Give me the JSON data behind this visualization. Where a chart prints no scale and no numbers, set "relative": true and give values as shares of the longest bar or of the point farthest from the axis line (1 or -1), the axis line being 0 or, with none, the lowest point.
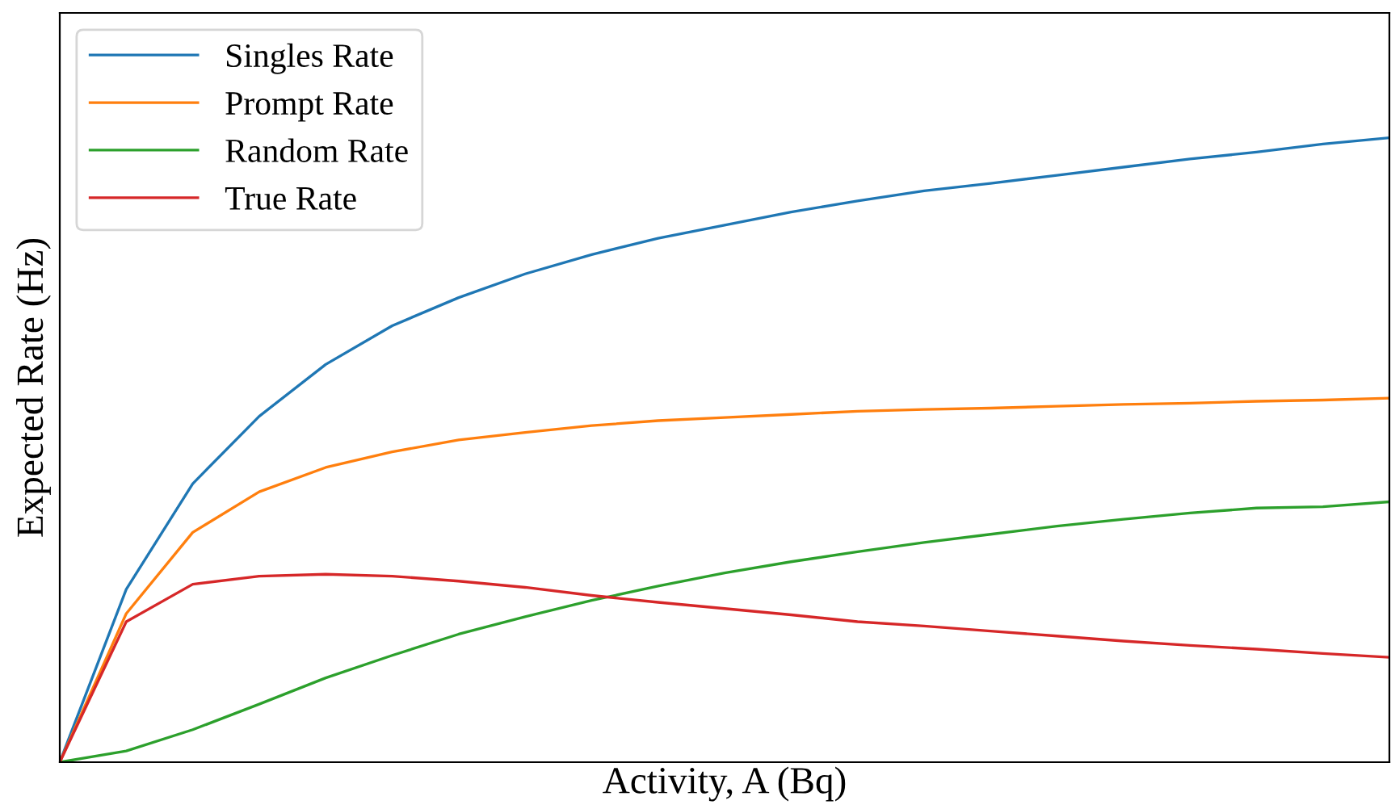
{
  "chart_data": {
    "type": "line",
    "relative": true,
    "xlabel": "Activity, A (Bq)",
    "ylabel": "Expected Rate (Hz)",
    "legend": "top left",
    "categories": [
      null,
      null,
      null,
      null,
      null,
      null,
      null,
      null,
      null,
      null,
      null,
      null,
      null,
      null,
      null,
      null,
      null,
      null,
      null,
      null,
      null
    ],
    "series": [
      {
        "name": "Singles Rate",
        "color": "#1f77b4",
        "values": [
          0,
          0.277,
          0.446,
          0.554,
          0.637,
          0.699,
          0.744,
          0.782,
          0.813,
          0.839,
          0.86,
          0.881,
          0.899,
          0.915,
          0.927,
          0.94,
          0.953,
          0.966,
          0.977,
          0.99,
          1
        ]
      },
      {
        "name": "Prompt Rate",
        "color": "#ff7f0e",
        "values": [
          0,
          0.238,
          0.368,
          0.433,
          0.472,
          0.497,
          0.516,
          0.528,
          0.539,
          0.547,
          0.552,
          0.557,
          0.562,
          0.565,
          0.567,
          0.57,
          0.573,
          0.575,
          0.578,
          0.58,
          0.583
        ]
      },
      {
        "name": "Random Rate",
        "color": "#2ca02c",
        "values": [
          0,
          0.018,
          0.052,
          0.093,
          0.135,
          0.171,
          0.205,
          0.233,
          0.259,
          0.282,
          0.303,
          0.321,
          0.337,
          0.352,
          0.365,
          0.378,
          0.389,
          0.399,
          0.407,
          0.409,
          0.417
        ]
      },
      {
        "name": "True Rate",
        "color": "#d62728",
        "values": [
          0,
          0.225,
          0.285,
          0.298,
          0.301,
          0.298,
          0.29,
          0.28,
          0.267,
          0.256,
          0.246,
          0.236,
          0.225,
          0.218,
          0.21,
          0.202,
          0.194,
          0.187,
          0.181,
          0.174,
          0.168
        ]
      }
    ]
  }
}
